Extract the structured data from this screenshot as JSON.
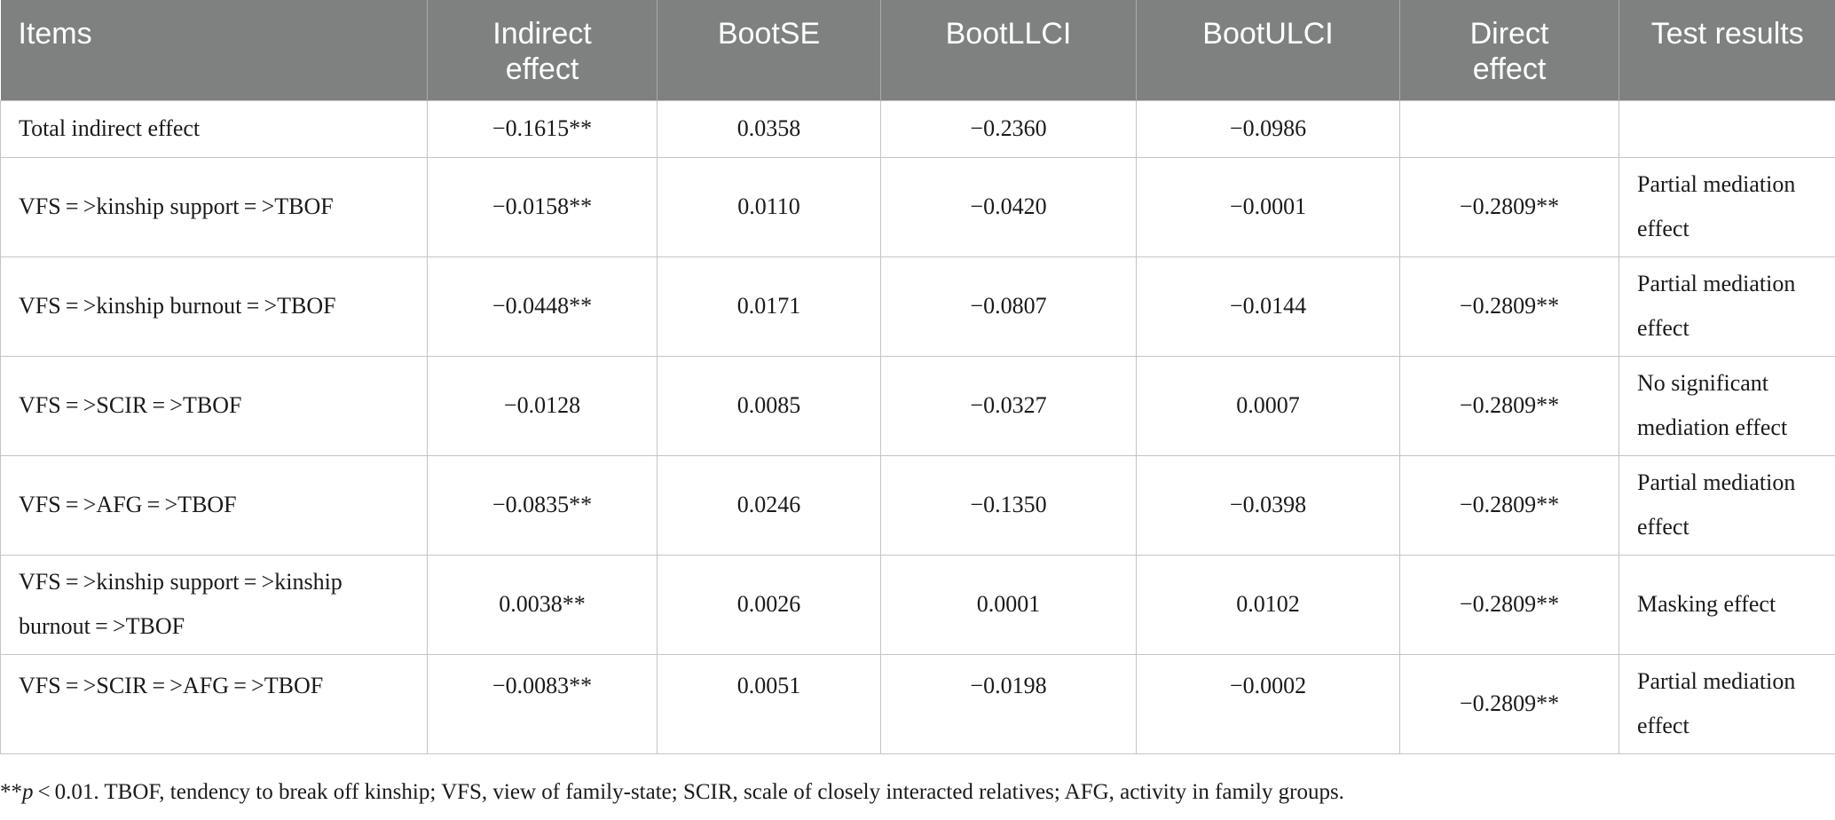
{
  "table": {
    "headers": [
      {
        "line1": "Items",
        "line2": ""
      },
      {
        "line1": "Indirect",
        "line2": "effect"
      },
      {
        "line1": "BootSE",
        "line2": ""
      },
      {
        "line1": "BootLLCI",
        "line2": ""
      },
      {
        "line1": "BootULCI",
        "line2": ""
      },
      {
        "line1": "Direct",
        "line2": "effect"
      },
      {
        "line1": "Test results",
        "line2": ""
      }
    ],
    "rows": [
      {
        "item": "Total indirect effect",
        "indirect": "−0.1615**",
        "bootse": "0.0358",
        "bootllci": "−0.2360",
        "bootulci": "−0.0986",
        "direct": "",
        "result": ""
      },
      {
        "item": "VFS = >kinship support = >TBOF",
        "indirect": "−0.0158**",
        "bootse": "0.0110",
        "bootllci": "−0.0420",
        "bootulci": "−0.0001",
        "direct": "−0.2809**",
        "result": "Partial mediation effect"
      },
      {
        "item": "VFS = >kinship burnout = >TBOF",
        "indirect": "−0.0448**",
        "bootse": "0.0171",
        "bootllci": "−0.0807",
        "bootulci": "−0.0144",
        "direct": "−0.2809**",
        "result": "Partial mediation effect"
      },
      {
        "item": "VFS = >SCIR = >TBOF",
        "indirect": "−0.0128",
        "bootse": "0.0085",
        "bootllci": "−0.0327",
        "bootulci": "0.0007",
        "direct": "−0.2809**",
        "result": "No significant mediation effect"
      },
      {
        "item": "VFS = >AFG = >TBOF",
        "indirect": "−0.0835**",
        "bootse": "0.0246",
        "bootllci": "−0.1350",
        "bootulci": "−0.0398",
        "direct": "−0.2809**",
        "result": "Partial mediation effect"
      },
      {
        "item": "VFS = >kinship support = >kinship burnout = >TBOF",
        "indirect": "0.0038**",
        "bootse": "0.0026",
        "bootllci": "0.0001",
        "bootulci": "0.0102",
        "direct": "−0.2809**",
        "result": "Masking effect"
      },
      {
        "item": "VFS = >SCIR = >AFG = >TBOF",
        "indirect": "−0.0083**",
        "bootse": "0.0051",
        "bootllci": "−0.0198",
        "bootulci": "−0.0002",
        "direct": "−0.2809**",
        "result": "Partial mediation effect"
      }
    ]
  },
  "footnote": {
    "stars": "**",
    "p_symbol": "p",
    "text": " < 0.01. TBOF, tendency to break off kinship; VFS, view of family-state; SCIR, scale of closely interacted relatives; AFG, activity in family groups."
  }
}
